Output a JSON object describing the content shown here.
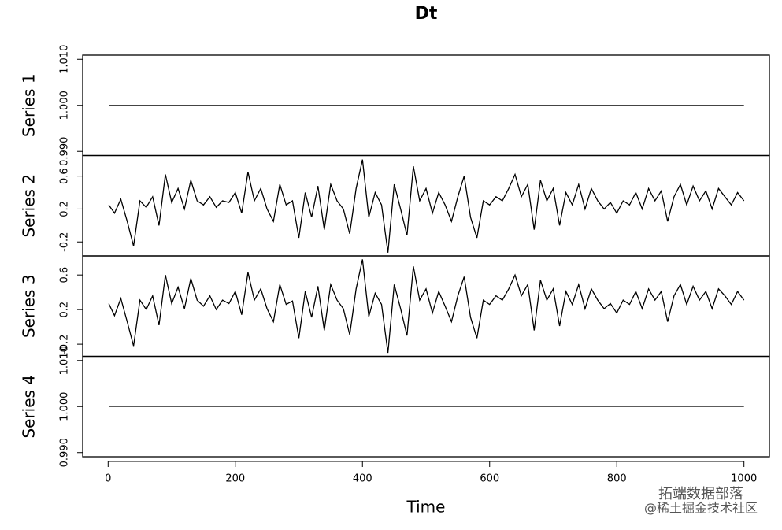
{
  "chart_data": {
    "type": "line",
    "title": "Dt",
    "xlabel": "Time",
    "xlim": [
      -40,
      1040
    ],
    "xticks": [
      0,
      200,
      400,
      600,
      800,
      1000
    ],
    "series": [
      {
        "name": "Series 1",
        "color": "#444444",
        "x": [
          1,
          1000
        ],
        "values": [
          1,
          1
        ],
        "ylim": [
          0.9891,
          1.0109
        ],
        "yticks": [
          {
            "value": 0.99,
            "label": "0.990"
          },
          {
            "value": 1,
            "label": "1.000"
          },
          {
            "value": 1.01,
            "label": "1.010"
          }
        ]
      },
      {
        "name": "Series 2",
        "color": "#000000",
        "x": [
          1,
          10,
          20,
          30,
          40,
          50,
          60,
          70,
          80,
          90,
          100,
          110,
          120,
          130,
          140,
          150,
          160,
          170,
          180,
          190,
          200,
          210,
          220,
          230,
          240,
          250,
          260,
          270,
          280,
          290,
          300,
          310,
          320,
          330,
          340,
          350,
          360,
          370,
          380,
          390,
          400,
          410,
          420,
          430,
          440,
          450,
          460,
          470,
          480,
          490,
          500,
          510,
          520,
          530,
          540,
          550,
          560,
          570,
          580,
          590,
          600,
          610,
          620,
          630,
          640,
          650,
          660,
          670,
          680,
          690,
          700,
          710,
          720,
          730,
          740,
          750,
          760,
          770,
          780,
          790,
          800,
          810,
          820,
          830,
          840,
          850,
          860,
          870,
          880,
          890,
          900,
          910,
          920,
          930,
          940,
          950,
          960,
          970,
          980,
          990,
          1000
        ],
        "values": [
          0.25,
          0.15,
          0.32,
          0.05,
          -0.25,
          0.3,
          0.22,
          0.35,
          0.0,
          0.62,
          0.28,
          0.45,
          0.2,
          0.55,
          0.3,
          0.25,
          0.35,
          0.22,
          0.3,
          0.28,
          0.4,
          0.15,
          0.65,
          0.3,
          0.45,
          0.2,
          0.05,
          0.5,
          0.25,
          0.3,
          -0.15,
          0.4,
          0.1,
          0.48,
          -0.05,
          0.5,
          0.3,
          0.2,
          -0.1,
          0.45,
          0.8,
          0.1,
          0.4,
          0.25,
          -0.33,
          0.5,
          0.2,
          -0.12,
          0.72,
          0.3,
          0.45,
          0.15,
          0.4,
          0.25,
          0.05,
          0.35,
          0.6,
          0.1,
          -0.15,
          0.3,
          0.25,
          0.35,
          0.3,
          0.45,
          0.62,
          0.35,
          0.5,
          -0.05,
          0.55,
          0.3,
          0.45,
          0.0,
          0.4,
          0.25,
          0.5,
          0.2,
          0.45,
          0.3,
          0.2,
          0.28,
          0.15,
          0.3,
          0.25,
          0.4,
          0.2,
          0.45,
          0.3,
          0.42,
          0.05,
          0.35,
          0.5,
          0.25,
          0.48,
          0.3,
          0.42,
          0.2,
          0.45,
          0.35,
          0.25,
          0.4,
          0.3
        ],
        "ylim": [
          -0.37,
          0.85
        ],
        "yticks": [
          -0.2,
          0.2,
          0.6
        ]
      },
      {
        "name": "Series 3",
        "color": "#000000",
        "x": [
          1,
          10,
          20,
          30,
          40,
          50,
          60,
          70,
          80,
          90,
          100,
          110,
          120,
          130,
          140,
          150,
          160,
          170,
          180,
          190,
          200,
          210,
          220,
          230,
          240,
          250,
          260,
          270,
          280,
          290,
          300,
          310,
          320,
          330,
          340,
          350,
          360,
          370,
          380,
          390,
          400,
          410,
          420,
          430,
          440,
          450,
          460,
          470,
          480,
          490,
          500,
          510,
          520,
          530,
          540,
          550,
          560,
          570,
          580,
          590,
          600,
          610,
          620,
          630,
          640,
          650,
          660,
          670,
          680,
          690,
          700,
          710,
          720,
          730,
          740,
          750,
          760,
          770,
          780,
          790,
          800,
          810,
          820,
          830,
          840,
          850,
          860,
          870,
          880,
          890,
          900,
          910,
          920,
          930,
          940,
          950,
          960,
          970,
          980,
          990,
          1000
        ],
        "values": [
          0.27,
          0.13,
          0.33,
          0.06,
          -0.22,
          0.31,
          0.2,
          0.36,
          0.02,
          0.6,
          0.27,
          0.46,
          0.21,
          0.56,
          0.31,
          0.24,
          0.36,
          0.2,
          0.31,
          0.27,
          0.41,
          0.14,
          0.63,
          0.31,
          0.44,
          0.21,
          0.06,
          0.49,
          0.26,
          0.3,
          -0.13,
          0.41,
          0.11,
          0.47,
          -0.04,
          0.49,
          0.31,
          0.21,
          -0.09,
          0.44,
          0.78,
          0.12,
          0.39,
          0.26,
          -0.3,
          0.49,
          0.21,
          -0.1,
          0.7,
          0.31,
          0.44,
          0.16,
          0.41,
          0.24,
          0.06,
          0.36,
          0.58,
          0.11,
          -0.13,
          0.31,
          0.26,
          0.36,
          0.31,
          0.44,
          0.6,
          0.36,
          0.49,
          -0.04,
          0.54,
          0.31,
          0.44,
          0.01,
          0.41,
          0.26,
          0.49,
          0.21,
          0.44,
          0.31,
          0.21,
          0.27,
          0.16,
          0.31,
          0.26,
          0.41,
          0.21,
          0.44,
          0.31,
          0.41,
          0.06,
          0.36,
          0.49,
          0.26,
          0.47,
          0.31,
          0.41,
          0.21,
          0.44,
          0.36,
          0.26,
          0.41,
          0.31
        ],
        "ylim": [
          -0.34,
          0.82
        ],
        "yticks": [
          -0.2,
          0.2,
          0.6
        ]
      },
      {
        "name": "Series 4",
        "color": "#444444",
        "x": [
          1,
          1000
        ],
        "values": [
          1,
          1
        ],
        "ylim": [
          0.9891,
          1.0109
        ],
        "yticks": [
          {
            "value": 0.99,
            "label": "0.990"
          },
          {
            "value": 1,
            "label": "1.000"
          },
          {
            "value": 1.01,
            "label": "1.010"
          }
        ]
      }
    ],
    "watermark": [
      "拓端数据部落",
      "@稀土掘金技术社区"
    ]
  }
}
